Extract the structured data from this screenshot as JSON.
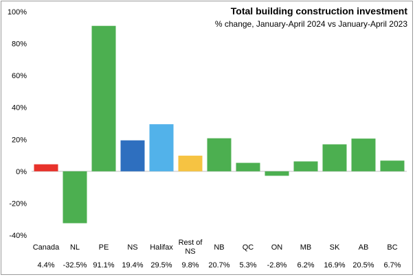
{
  "chart_data": {
    "type": "bar",
    "title": "Total building construction  investment",
    "subtitle": "% change, January-April  2024 vs January-April 2023",
    "xlabel": "",
    "ylabel": "",
    "ylim": [
      -40,
      100
    ],
    "yticks": [
      -40,
      -20,
      0,
      20,
      40,
      60,
      80,
      100
    ],
    "ytick_labels": [
      "-40%",
      "-20%",
      "0%",
      "20%",
      "40%",
      "60%",
      "80%",
      "100%"
    ],
    "grid": false,
    "categories": [
      [
        "Canada"
      ],
      [
        "NL"
      ],
      [
        "PE"
      ],
      [
        "NS"
      ],
      [
        "Halifax"
      ],
      [
        "Rest of",
        "NS"
      ],
      [
        "NB"
      ],
      [
        "QC"
      ],
      [
        "ON"
      ],
      [
        "MB"
      ],
      [
        "SK"
      ],
      [
        "AB"
      ],
      [
        "BC"
      ]
    ],
    "values": [
      4.4,
      -32.5,
      91.1,
      19.4,
      29.5,
      9.8,
      20.7,
      5.3,
      -2.8,
      6.2,
      16.9,
      20.5,
      6.7
    ],
    "value_labels": [
      "4.4%",
      "-32.5%",
      "91.1%",
      "19.4%",
      "29.5%",
      "9.8%",
      "20.7%",
      "5.3%",
      "-2.8%",
      "6.2%",
      "16.9%",
      "20.5%",
      "6.7%"
    ],
    "bar_colors": [
      "#e8322b",
      "#4caf50",
      "#4caf50",
      "#2e6fbf",
      "#52b2ea",
      "#f6c342",
      "#4caf50",
      "#4caf50",
      "#4caf50",
      "#4caf50",
      "#4caf50",
      "#4caf50",
      "#4caf50"
    ]
  }
}
